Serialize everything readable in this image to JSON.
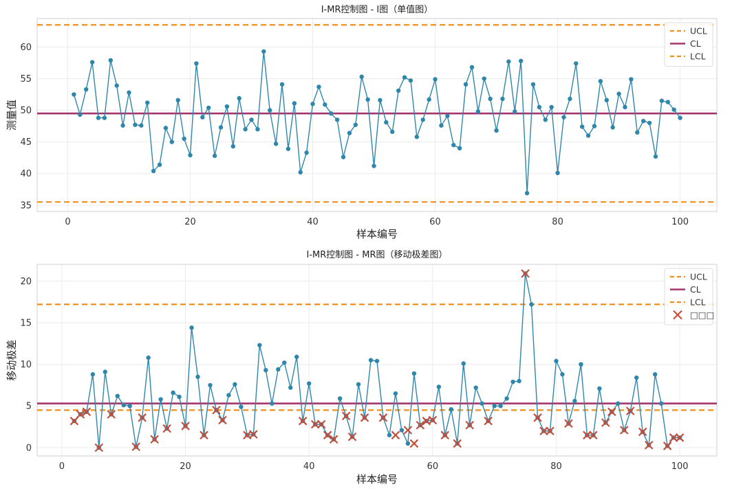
{
  "chart_data": [
    {
      "type": "line",
      "title": "I-MR控制图 - I图（单值图）",
      "xlabel": "样本编号",
      "ylabel": "测量值",
      "xlim": [
        -5,
        106
      ],
      "ylim": [
        34,
        64.5
      ],
      "xticks": [
        0,
        20,
        40,
        60,
        80,
        100
      ],
      "yticks": [
        35,
        40,
        45,
        50,
        55,
        60
      ],
      "grid": true,
      "legend_position": "top-right",
      "control_limits": {
        "UCL": 63.5,
        "CL": 49.5,
        "LCL": 35.5
      },
      "legend": [
        {
          "label": "UCL",
          "style": "dashed",
          "color": "#f28e1c"
        },
        {
          "label": "CL",
          "style": "solid",
          "color": "#a4336b"
        },
        {
          "label": "LCL",
          "style": "dashed",
          "color": "#f28e1c"
        }
      ],
      "colors": {
        "series": "#2e86ab",
        "cl": "#a4336b",
        "limits": "#f28e1c"
      },
      "x": [
        1,
        2,
        3,
        4,
        5,
        6,
        7,
        8,
        9,
        10,
        11,
        12,
        13,
        14,
        15,
        16,
        17,
        18,
        19,
        20,
        21,
        22,
        23,
        24,
        25,
        26,
        27,
        28,
        29,
        30,
        31,
        32,
        33,
        34,
        35,
        36,
        37,
        38,
        39,
        40,
        41,
        42,
        43,
        44,
        45,
        46,
        47,
        48,
        49,
        50,
        51,
        52,
        53,
        54,
        55,
        56,
        57,
        58,
        59,
        60,
        61,
        62,
        63,
        64,
        65,
        66,
        67,
        68,
        69,
        70,
        71,
        72,
        73,
        74,
        75,
        76,
        77,
        78,
        79,
        80,
        81,
        82,
        83,
        84,
        85,
        86,
        87,
        88,
        89,
        90,
        91,
        92,
        93,
        94,
        95,
        96,
        97,
        98,
        99,
        100
      ],
      "values": [
        52.5,
        49.3,
        53.3,
        57.6,
        48.8,
        48.8,
        57.9,
        53.9,
        47.6,
        52.8,
        47.7,
        47.6,
        51.2,
        40.4,
        41.4,
        47.2,
        45.0,
        51.6,
        45.5,
        42.9,
        57.4,
        48.9,
        50.4,
        42.8,
        47.3,
        50.6,
        44.3,
        51.9,
        47.0,
        48.5,
        47.0,
        59.3,
        50.0,
        44.7,
        54.1,
        43.9,
        51.1,
        40.2,
        43.3,
        51.0,
        53.7,
        50.9,
        49.5,
        48.5,
        42.6,
        46.4,
        47.7,
        55.3,
        51.7,
        41.2,
        51.6,
        48.1,
        46.6,
        53.1,
        55.2,
        54.7,
        45.8,
        48.5,
        51.7,
        54.9,
        47.6,
        49.1,
        44.5,
        44.0,
        54.1,
        56.8,
        49.8,
        55.0,
        51.8,
        46.8,
        51.8,
        57.7,
        49.8,
        57.8,
        36.9,
        54.1,
        50.5,
        48.5,
        50.5,
        40.1,
        48.9,
        51.8,
        57.4,
        47.4,
        46.0,
        47.5,
        54.6,
        51.6,
        47.3,
        52.6,
        50.5,
        54.9,
        46.5,
        48.3,
        48.0,
        42.7,
        51.5,
        51.3,
        50.1,
        48.8
      ]
    },
    {
      "type": "line",
      "title": "I-MR控制图 - MR图（移动极差图）",
      "xlabel": "样本编号",
      "ylabel": "移动极差",
      "xlim": [
        -4,
        106
      ],
      "ylim": [
        -1,
        22
      ],
      "xticks": [
        0,
        20,
        40,
        60,
        80,
        100
      ],
      "yticks": [
        0,
        5,
        10,
        15,
        20
      ],
      "grid": true,
      "legend_position": "top-right",
      "control_limits": {
        "UCL": 17.2,
        "CL": 5.3,
        "LCL": 4.5
      },
      "legend": [
        {
          "label": "UCL",
          "style": "dashed",
          "color": "#f28e1c"
        },
        {
          "label": "CL",
          "style": "solid",
          "color": "#a4336b"
        },
        {
          "label": "LCL",
          "style": "dashed",
          "color": "#f28e1c"
        },
        {
          "label": "□□□",
          "style": "x-marker",
          "color": "#c44e3a"
        }
      ],
      "colors": {
        "series": "#2e86ab",
        "cl": "#a4336b",
        "limits": "#f28e1c",
        "outliers": "#c44e3a"
      },
      "x": [
        2,
        3,
        4,
        5,
        6,
        7,
        8,
        9,
        10,
        11,
        12,
        13,
        14,
        15,
        16,
        17,
        18,
        19,
        20,
        21,
        22,
        23,
        24,
        25,
        26,
        27,
        28,
        29,
        30,
        31,
        32,
        33,
        34,
        35,
        36,
        37,
        38,
        39,
        40,
        41,
        42,
        43,
        44,
        45,
        46,
        47,
        48,
        49,
        50,
        51,
        52,
        53,
        54,
        55,
        56,
        57,
        58,
        59,
        60,
        61,
        62,
        63,
        64,
        65,
        66,
        67,
        68,
        69,
        70,
        71,
        72,
        73,
        74,
        75,
        76,
        77,
        78,
        79,
        80,
        81,
        82,
        83,
        84,
        85,
        86,
        87,
        88,
        89,
        90,
        91,
        92,
        93,
        94,
        95,
        96,
        97,
        98,
        99,
        100
      ],
      "values": [
        3.2,
        4.0,
        4.3,
        8.8,
        0.0,
        9.1,
        4.0,
        6.2,
        5.1,
        5.0,
        0.1,
        3.6,
        10.8,
        1.0,
        5.8,
        2.3,
        6.6,
        6.1,
        2.6,
        14.4,
        8.5,
        1.5,
        7.5,
        4.5,
        3.3,
        6.3,
        7.6,
        4.9,
        1.5,
        1.6,
        12.3,
        9.3,
        5.3,
        9.4,
        10.2,
        7.2,
        10.9,
        3.2,
        7.7,
        2.8,
        2.8,
        1.5,
        1.0,
        5.9,
        3.8,
        1.3,
        7.6,
        3.6,
        10.5,
        10.4,
        3.6,
        1.5,
        6.5,
        2.1,
        0.5,
        8.9,
        2.7,
        3.2,
        3.3,
        7.3,
        1.5,
        4.6,
        0.5,
        10.1,
        2.7,
        7.2,
        5.3,
        3.2,
        5.0,
        5.0,
        5.9,
        7.9,
        8.0,
        20.9,
        17.2,
        3.6,
        2.0,
        2.0,
        10.4,
        8.8,
        2.9,
        5.6,
        10.0,
        1.5,
        1.5,
        7.1,
        3.0,
        4.3,
        5.3,
        2.1,
        4.4,
        8.4,
        1.9,
        0.3,
        8.8,
        5.3,
        0.2,
        1.2,
        1.2
      ],
      "outliers": {
        "x": [
          2,
          3,
          4,
          8,
          6,
          12,
          13,
          15,
          17,
          20,
          23,
          25,
          26,
          30,
          31,
          39,
          41,
          42,
          43,
          44,
          46,
          47,
          49,
          52,
          54,
          56,
          57,
          58,
          59,
          60,
          62,
          64,
          66,
          69,
          75,
          77,
          78,
          79,
          82,
          85,
          86,
          88,
          89,
          91,
          92,
          94,
          95,
          98,
          99,
          100
        ],
        "values": [
          3.2,
          4.0,
          4.3,
          4.0,
          0.0,
          0.1,
          3.6,
          1.0,
          2.3,
          2.6,
          1.5,
          4.5,
          3.3,
          1.5,
          1.6,
          3.2,
          2.8,
          2.8,
          1.5,
          1.0,
          3.8,
          1.3,
          3.6,
          3.6,
          1.5,
          2.1,
          0.5,
          2.7,
          3.2,
          3.3,
          1.5,
          0.5,
          2.7,
          3.2,
          20.9,
          3.6,
          2.0,
          2.0,
          2.9,
          1.5,
          1.5,
          3.0,
          4.3,
          2.1,
          4.4,
          1.9,
          0.3,
          0.2,
          1.2,
          1.2
        ]
      }
    }
  ]
}
